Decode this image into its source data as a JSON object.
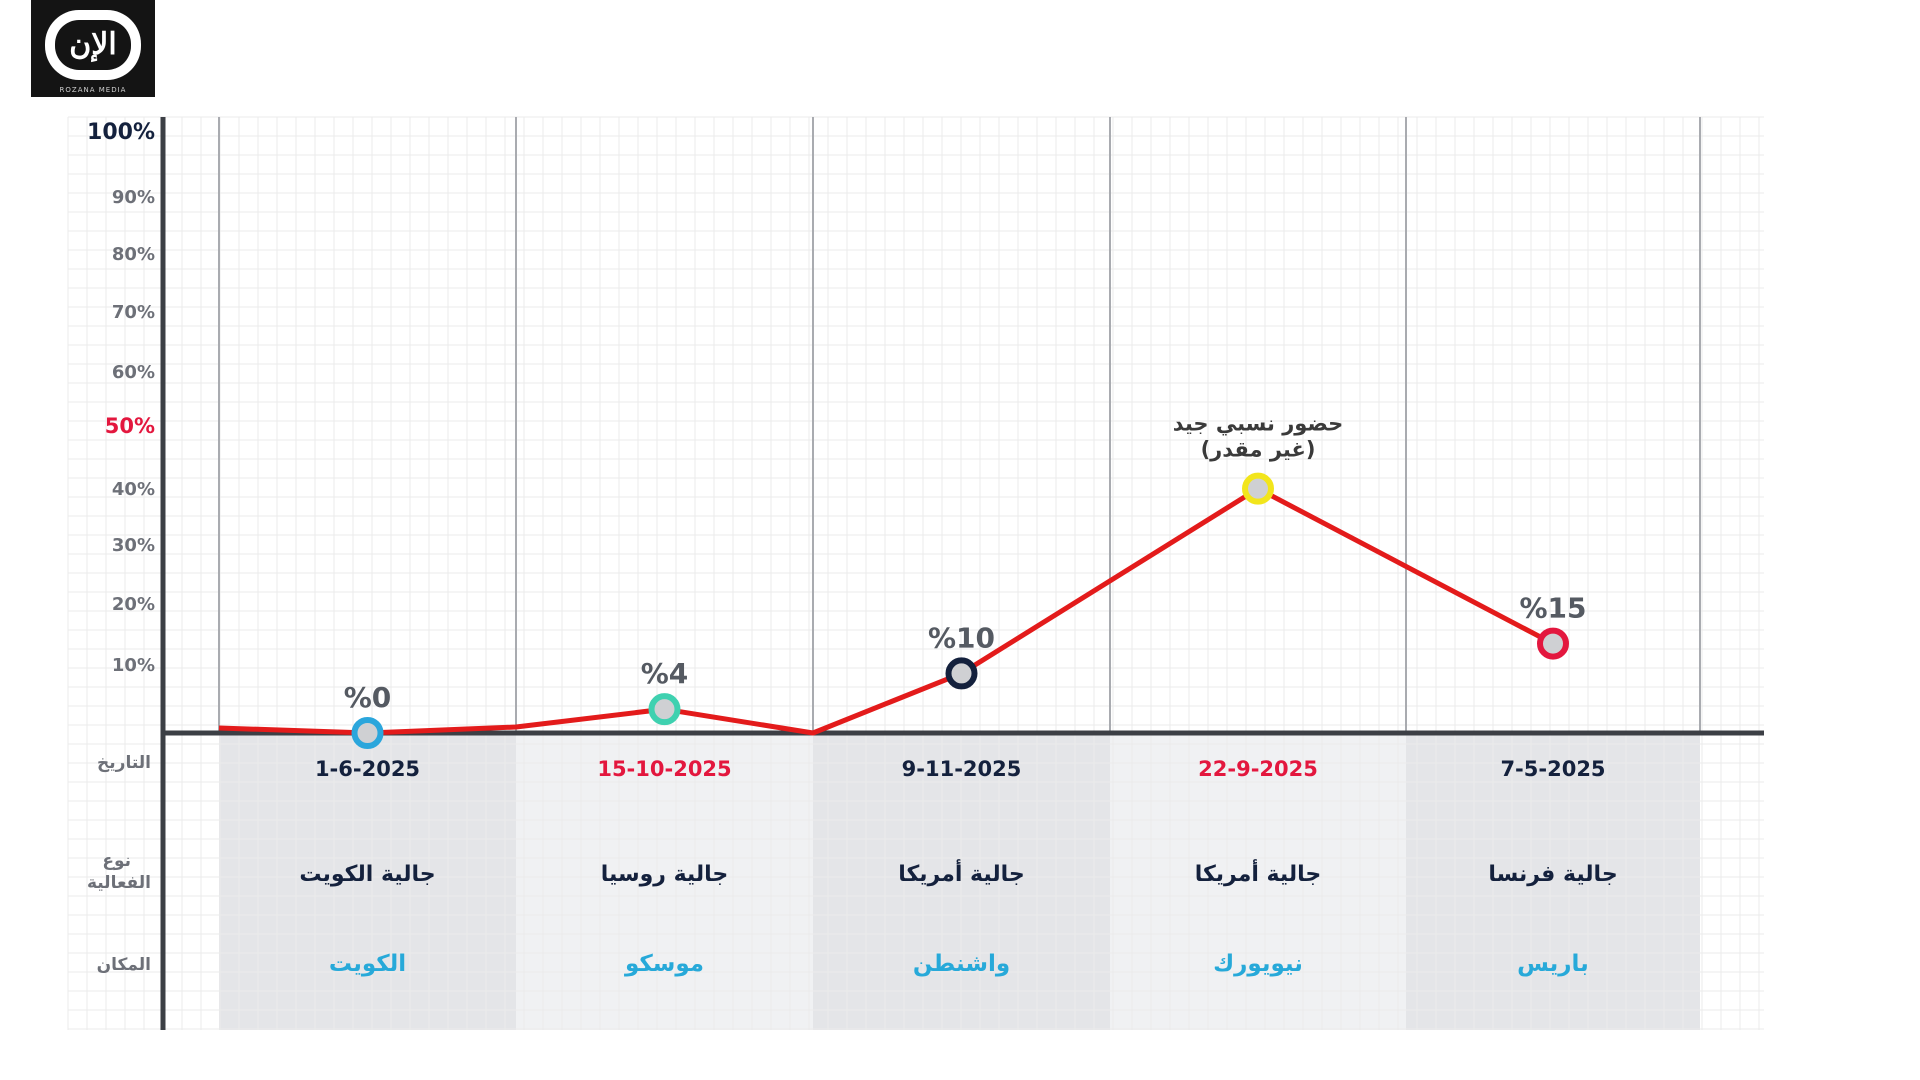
{
  "logo": {
    "glyph": "الإن",
    "caption": "ROZANA MEDIA"
  },
  "chart_data": {
    "type": "line",
    "ylim": [
      0,
      100
    ],
    "y_ticks": [
      "100%",
      "90%",
      "80%",
      "70%",
      "60%",
      "50%",
      "40%",
      "30%",
      "20%",
      "10%"
    ],
    "grid": true,
    "row_labels": {
      "date": "التاريخ",
      "event": "نوع الفعالية",
      "place": "المكان"
    },
    "line_color": "#e31b1b",
    "points": [
      {
        "date": "1-6-2025",
        "event": "جالية الكويت",
        "place": "الكويت",
        "value": 0,
        "label": "%0",
        "marker": "#2ba6dc",
        "date_color": "#14213d"
      },
      {
        "date": "15-10-2025",
        "event": "جالية روسيا",
        "place": "موسكو",
        "value": 4,
        "label": "%4",
        "marker": "#3fd1b0",
        "date_color": "#e3173e"
      },
      {
        "date": "9-11-2025",
        "event": "جالية أمريكا",
        "place": "واشنطن",
        "value": 10,
        "label": "%10",
        "marker": "#14213d",
        "date_color": "#14213d"
      },
      {
        "date": "22-9-2025",
        "event": "جالية أمريكا",
        "place": "نيويورك",
        "value": 41,
        "label": "حضور نسبي جيد (غير مقدر)",
        "marker": "#f2e51c",
        "date_color": "#e3173e"
      },
      {
        "date": "7-5-2025",
        "event": "جالية فرنسا",
        "place": "باريس",
        "value": 15,
        "label": "%15",
        "marker": "#e3173e",
        "date_color": "#14213d"
      }
    ]
  }
}
